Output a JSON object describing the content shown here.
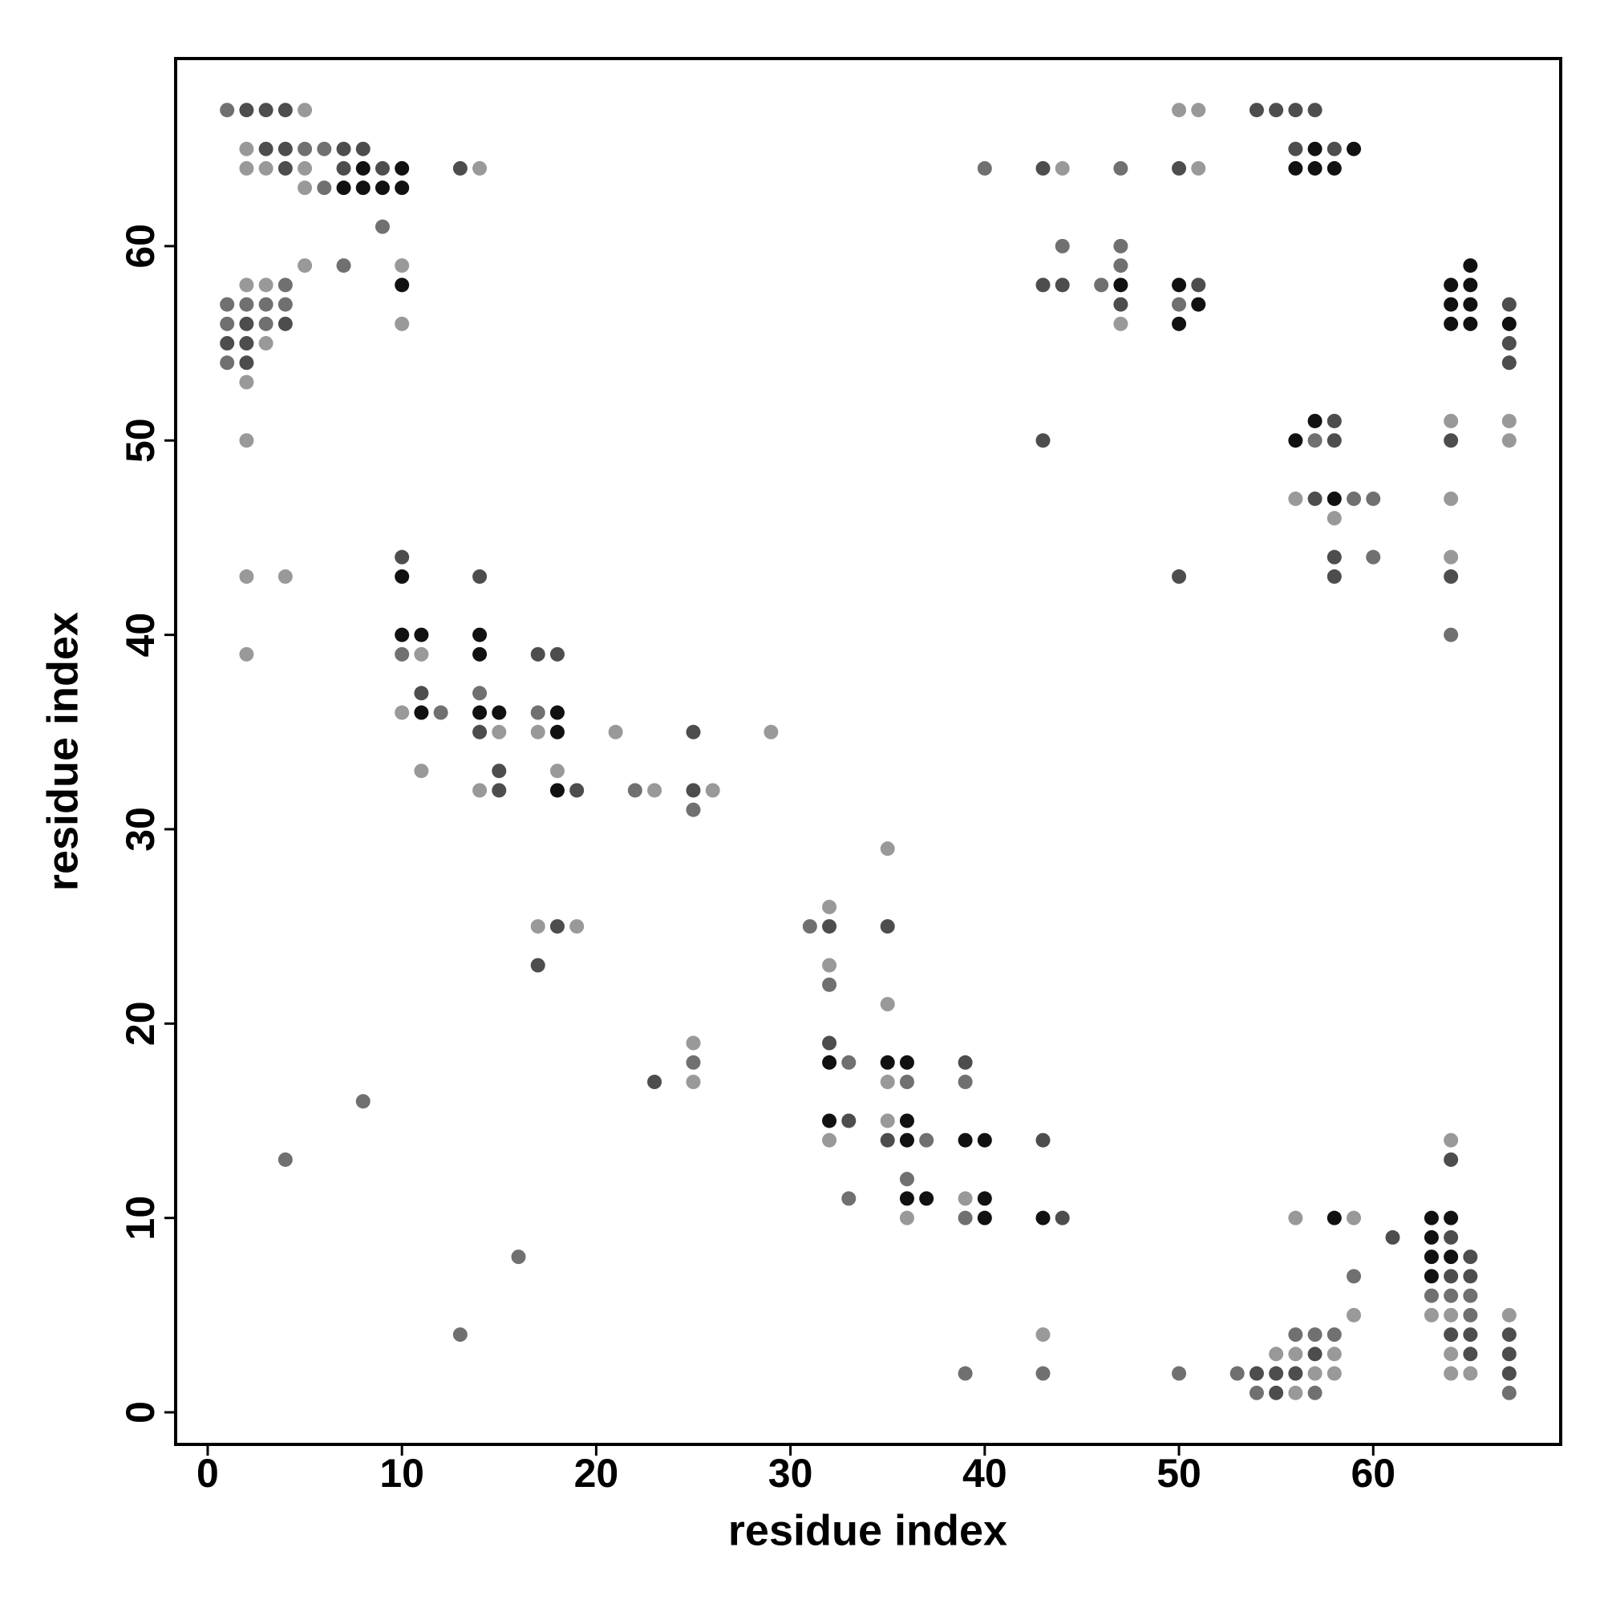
{
  "chart_data": {
    "type": "scatter",
    "xlabel": "residue index",
    "ylabel": "residue index",
    "xlim": [
      -1.65,
      69.65
    ],
    "ylim": [
      -1.65,
      69.65
    ],
    "xticks": [
      0,
      10,
      20,
      30,
      40,
      50,
      60
    ],
    "yticks": [
      0,
      10,
      20,
      30,
      40,
      50,
      60
    ],
    "rows": [
      {
        "y": 67,
        "x": [
          1,
          2,
          3,
          4,
          5,
          50,
          51,
          54,
          55,
          56,
          57
        ],
        "colors": [
          "#707070",
          "#4d4d4d",
          "#4d4d4d",
          "#4d4d4d",
          "#999",
          "#999",
          "#999",
          "#4d4d4d",
          "#4d4d4d",
          "#4d4d4d",
          "#4d4d4d"
        ]
      },
      {
        "y": 65,
        "x": [
          2,
          3,
          4,
          5,
          6,
          7,
          8,
          56,
          57,
          58,
          59
        ],
        "colors": [
          "#999",
          "#4d4d4d",
          "#4d4d4d",
          "#707070",
          "#707070",
          "#4d4d4d",
          "#4d4d4d",
          "#4d4d4d",
          "#111",
          "#4d4d4d",
          "#111"
        ]
      },
      {
        "y": 64,
        "x": [
          2,
          3,
          4,
          5,
          7,
          8,
          9,
          10,
          13,
          14,
          40,
          43,
          44,
          47,
          50,
          51,
          56,
          57,
          58
        ],
        "colors": [
          "#999",
          "#999",
          "#4d4d4d",
          "#999",
          "#4d4d4d",
          "#111",
          "#4d4d4d",
          "#111",
          "#4d4d4d",
          "#999",
          "#707070",
          "#4d4d4d",
          "#999",
          "#707070",
          "#4d4d4d",
          "#999",
          "#111",
          "#111",
          "#111"
        ]
      },
      {
        "y": 63,
        "x": [
          5,
          6,
          7,
          8,
          9,
          10
        ],
        "colors": [
          "#999",
          "#707070",
          "#111",
          "#111",
          "#111",
          "#111"
        ]
      },
      {
        "y": 61,
        "x": [
          9
        ],
        "colors": [
          "#707070"
        ]
      },
      {
        "y": 60,
        "x": [
          44,
          47
        ],
        "colors": [
          "#707070",
          "#707070"
        ]
      },
      {
        "y": 59,
        "x": [
          5,
          7,
          10,
          47,
          65
        ],
        "colors": [
          "#999",
          "#707070",
          "#999",
          "#707070",
          "#111"
        ]
      },
      {
        "y": 58,
        "x": [
          2,
          3,
          4,
          10,
          43,
          44,
          46,
          47,
          50,
          51,
          64,
          65
        ],
        "colors": [
          "#999",
          "#999",
          "#707070",
          "#111",
          "#4d4d4d",
          "#4d4d4d",
          "#707070",
          "#111",
          "#111",
          "#4d4d4d",
          "#111",
          "#111"
        ]
      },
      {
        "y": 57,
        "x": [
          1,
          2,
          3,
          4,
          47,
          50,
          51,
          64,
          65,
          67
        ],
        "colors": [
          "#707070",
          "#707070",
          "#707070",
          "#707070",
          "#4d4d4d",
          "#707070",
          "#111",
          "#111",
          "#111",
          "#4d4d4d"
        ]
      },
      {
        "y": 56,
        "x": [
          1,
          2,
          3,
          4,
          10,
          47,
          50,
          64,
          65,
          67
        ],
        "colors": [
          "#707070",
          "#4d4d4d",
          "#707070",
          "#4d4d4d",
          "#999",
          "#999",
          "#111",
          "#111",
          "#111",
          "#111"
        ]
      },
      {
        "y": 55,
        "x": [
          1,
          2,
          3,
          67
        ],
        "colors": [
          "#4d4d4d",
          "#4d4d4d",
          "#999",
          "#4d4d4d"
        ]
      },
      {
        "y": 54,
        "x": [
          1,
          2,
          67
        ],
        "colors": [
          "#707070",
          "#4d4d4d",
          "#4d4d4d"
        ]
      },
      {
        "y": 53,
        "x": [
          2
        ],
        "colors": [
          "#999"
        ]
      },
      {
        "y": 51,
        "x": [
          57,
          58,
          64,
          67
        ],
        "colors": [
          "#111",
          "#4d4d4d",
          "#999",
          "#999"
        ]
      },
      {
        "y": 50,
        "x": [
          2,
          43,
          56,
          57,
          58,
          64,
          67
        ],
        "colors": [
          "#999",
          "#4d4d4d",
          "#111",
          "#707070",
          "#4d4d4d",
          "#4d4d4d",
          "#999"
        ]
      },
      {
        "y": 47,
        "x": [
          56,
          57,
          58,
          59,
          60,
          64
        ],
        "colors": [
          "#999",
          "#4d4d4d",
          "#111",
          "#707070",
          "#707070",
          "#999"
        ]
      },
      {
        "y": 46,
        "x": [
          58
        ],
        "colors": [
          "#999"
        ]
      },
      {
        "y": 44,
        "x": [
          10,
          58,
          60,
          64
        ],
        "colors": [
          "#4d4d4d",
          "#4d4d4d",
          "#707070",
          "#999"
        ]
      },
      {
        "y": 43,
        "x": [
          2,
          4,
          10,
          14,
          50,
          58,
          64
        ],
        "colors": [
          "#999",
          "#999",
          "#111",
          "#4d4d4d",
          "#4d4d4d",
          "#4d4d4d",
          "#4d4d4d"
        ]
      },
      {
        "y": 40,
        "x": [
          10,
          11,
          14,
          64
        ],
        "colors": [
          "#111",
          "#111",
          "#111",
          "#707070"
        ]
      },
      {
        "y": 39,
        "x": [
          2,
          10,
          11,
          14,
          17,
          18
        ],
        "colors": [
          "#999",
          "#707070",
          "#999",
          "#111",
          "#4d4d4d",
          "#4d4d4d"
        ]
      },
      {
        "y": 37,
        "x": [
          11,
          14
        ],
        "colors": [
          "#4d4d4d",
          "#707070"
        ]
      },
      {
        "y": 36,
        "x": [
          10,
          11,
          12,
          14,
          15,
          17,
          18
        ],
        "colors": [
          "#999",
          "#111",
          "#707070",
          "#111",
          "#111",
          "#707070",
          "#111"
        ]
      },
      {
        "y": 35,
        "x": [
          14,
          15,
          17,
          18,
          21,
          25,
          29
        ],
        "colors": [
          "#4d4d4d",
          "#999",
          "#999",
          "#111",
          "#999",
          "#4d4d4d",
          "#999"
        ]
      },
      {
        "y": 33,
        "x": [
          11,
          15,
          18
        ],
        "colors": [
          "#999",
          "#4d4d4d",
          "#999"
        ]
      },
      {
        "y": 32,
        "x": [
          14,
          15,
          18,
          19,
          22,
          23,
          25,
          26
        ],
        "colors": [
          "#999",
          "#4d4d4d",
          "#111",
          "#4d4d4d",
          "#707070",
          "#999",
          "#4d4d4d",
          "#999"
        ]
      },
      {
        "y": 31,
        "x": [
          25
        ],
        "colors": [
          "#707070"
        ]
      },
      {
        "y": 29,
        "x": [
          35
        ],
        "colors": [
          "#999"
        ]
      },
      {
        "y": 26,
        "x": [
          32
        ],
        "colors": [
          "#999"
        ]
      },
      {
        "y": 25,
        "x": [
          17,
          18,
          19,
          31,
          32,
          35
        ],
        "colors": [
          "#999",
          "#4d4d4d",
          "#999",
          "#707070",
          "#4d4d4d",
          "#4d4d4d"
        ]
      },
      {
        "y": 23,
        "x": [
          17,
          32
        ],
        "colors": [
          "#4d4d4d",
          "#999"
        ]
      },
      {
        "y": 22,
        "x": [
          32
        ],
        "colors": [
          "#707070"
        ]
      },
      {
        "y": 21,
        "x": [
          35
        ],
        "colors": [
          "#999"
        ]
      },
      {
        "y": 19,
        "x": [
          25,
          32
        ],
        "colors": [
          "#999",
          "#4d4d4d"
        ]
      },
      {
        "y": 18,
        "x": [
          25,
          32,
          33,
          35,
          36,
          39
        ],
        "colors": [
          "#707070",
          "#111",
          "#707070",
          "#111",
          "#111",
          "#4d4d4d"
        ]
      },
      {
        "y": 17,
        "x": [
          23,
          25,
          35,
          36,
          39
        ],
        "colors": [
          "#4d4d4d",
          "#999",
          "#999",
          "#707070",
          "#707070"
        ]
      },
      {
        "y": 16,
        "x": [
          8
        ],
        "colors": [
          "#707070"
        ]
      },
      {
        "y": 15,
        "x": [
          32,
          33,
          35,
          36
        ],
        "colors": [
          "#111",
          "#4d4d4d",
          "#999",
          "#111"
        ]
      },
      {
        "y": 14,
        "x": [
          32,
          35,
          36,
          37,
          39,
          40,
          43,
          64
        ],
        "colors": [
          "#999",
          "#4d4d4d",
          "#111",
          "#707070",
          "#111",
          "#111",
          "#4d4d4d",
          "#999"
        ]
      },
      {
        "y": 13,
        "x": [
          4,
          64
        ],
        "colors": [
          "#707070",
          "#4d4d4d"
        ]
      },
      {
        "y": 12,
        "x": [
          36
        ],
        "colors": [
          "#707070"
        ]
      },
      {
        "y": 11,
        "x": [
          33,
          36,
          37,
          39,
          40
        ],
        "colors": [
          "#707070",
          "#111",
          "#111",
          "#999",
          "#111"
        ]
      },
      {
        "y": 10,
        "x": [
          36,
          39,
          40,
          43,
          44,
          56,
          58,
          59,
          63,
          64
        ],
        "colors": [
          "#999",
          "#707070",
          "#111",
          "#111",
          "#4d4d4d",
          "#999",
          "#111",
          "#999",
          "#111",
          "#111"
        ]
      },
      {
        "y": 9,
        "x": [
          61,
          63,
          64
        ],
        "colors": [
          "#4d4d4d",
          "#111",
          "#4d4d4d"
        ]
      },
      {
        "y": 8,
        "x": [
          16,
          63,
          64,
          65
        ],
        "colors": [
          "#707070",
          "#111",
          "#111",
          "#4d4d4d"
        ]
      },
      {
        "y": 7,
        "x": [
          59,
          63,
          64,
          65
        ],
        "colors": [
          "#707070",
          "#111",
          "#4d4d4d",
          "#4d4d4d"
        ]
      },
      {
        "y": 6,
        "x": [
          63,
          64,
          65
        ],
        "colors": [
          "#707070",
          "#707070",
          "#707070"
        ]
      },
      {
        "y": 5,
        "x": [
          59,
          63,
          64,
          65,
          67
        ],
        "colors": [
          "#999",
          "#999",
          "#999",
          "#707070",
          "#999"
        ]
      },
      {
        "y": 4,
        "x": [
          13,
          43,
          56,
          57,
          58,
          64,
          65,
          67
        ],
        "colors": [
          "#707070",
          "#999",
          "#707070",
          "#707070",
          "#707070",
          "#4d4d4d",
          "#4d4d4d",
          "#4d4d4d"
        ]
      },
      {
        "y": 3,
        "x": [
          55,
          56,
          57,
          58,
          64,
          65,
          67
        ],
        "colors": [
          "#999",
          "#999",
          "#4d4d4d",
          "#999",
          "#999",
          "#4d4d4d",
          "#4d4d4d"
        ]
      },
      {
        "y": 2,
        "x": [
          39,
          43,
          50,
          53,
          54,
          55,
          56,
          57,
          58,
          64,
          65,
          67
        ],
        "colors": [
          "#707070",
          "#707070",
          "#707070",
          "#707070",
          "#4d4d4d",
          "#4d4d4d",
          "#4d4d4d",
          "#999",
          "#999",
          "#999",
          "#999",
          "#4d4d4d"
        ]
      },
      {
        "y": 1,
        "x": [
          54,
          55,
          56,
          57,
          67
        ],
        "colors": [
          "#707070",
          "#4d4d4d",
          "#999",
          "#707070",
          "#707070"
        ]
      }
    ]
  }
}
